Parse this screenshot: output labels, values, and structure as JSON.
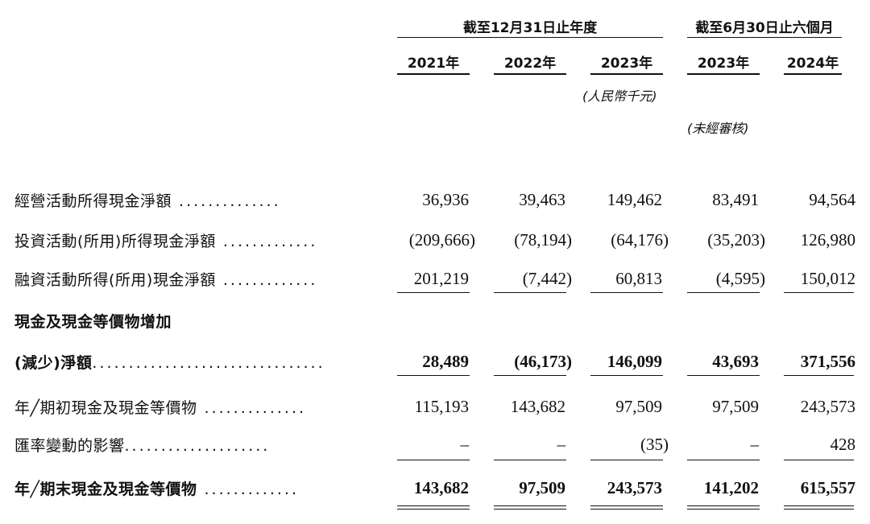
{
  "header": {
    "group_annual": "截至12月31日止年度",
    "group_interim": "截至6月30日止六個月",
    "years": [
      "2021年",
      "2022年",
      "2023年",
      "2023年",
      "2024年"
    ],
    "unit_note": "(人民幣千元)",
    "unaudited_note": "(未經審核)"
  },
  "rows": [
    {
      "label": "經營活動所得現金淨額",
      "values": [
        "36,936",
        "39,463",
        "149,462",
        "83,491",
        "94,564"
      ]
    },
    {
      "label": "投資活動(所用)所得現金淨額",
      "values": [
        "(209,666)",
        "(78,194)",
        "(64,176)",
        "(35,203)",
        "126,980"
      ]
    },
    {
      "label": "融資活動所得(所用)現金淨額",
      "values": [
        "201,219",
        "(7,442)",
        "60,813",
        "(4,595)",
        "150,012"
      ]
    },
    {
      "label": "現金及現金等價物增加",
      "values": []
    },
    {
      "label": "(減少)淨額",
      "values": [
        "28,489",
        "(46,173)",
        "146,099",
        "43,693",
        "371,556"
      ]
    },
    {
      "label": "年╱期初現金及現金等價物",
      "values": [
        "115,193",
        "143,682",
        "97,509",
        "97,509",
        "243,573"
      ]
    },
    {
      "label": "匯率變動的影響",
      "values": [
        "–",
        "–",
        "(35)",
        "–",
        "428"
      ]
    },
    {
      "label": "年╱期末現金及現金等價物",
      "values": [
        "143,682",
        "97,509",
        "243,573",
        "141,202",
        "615,557"
      ]
    }
  ]
}
